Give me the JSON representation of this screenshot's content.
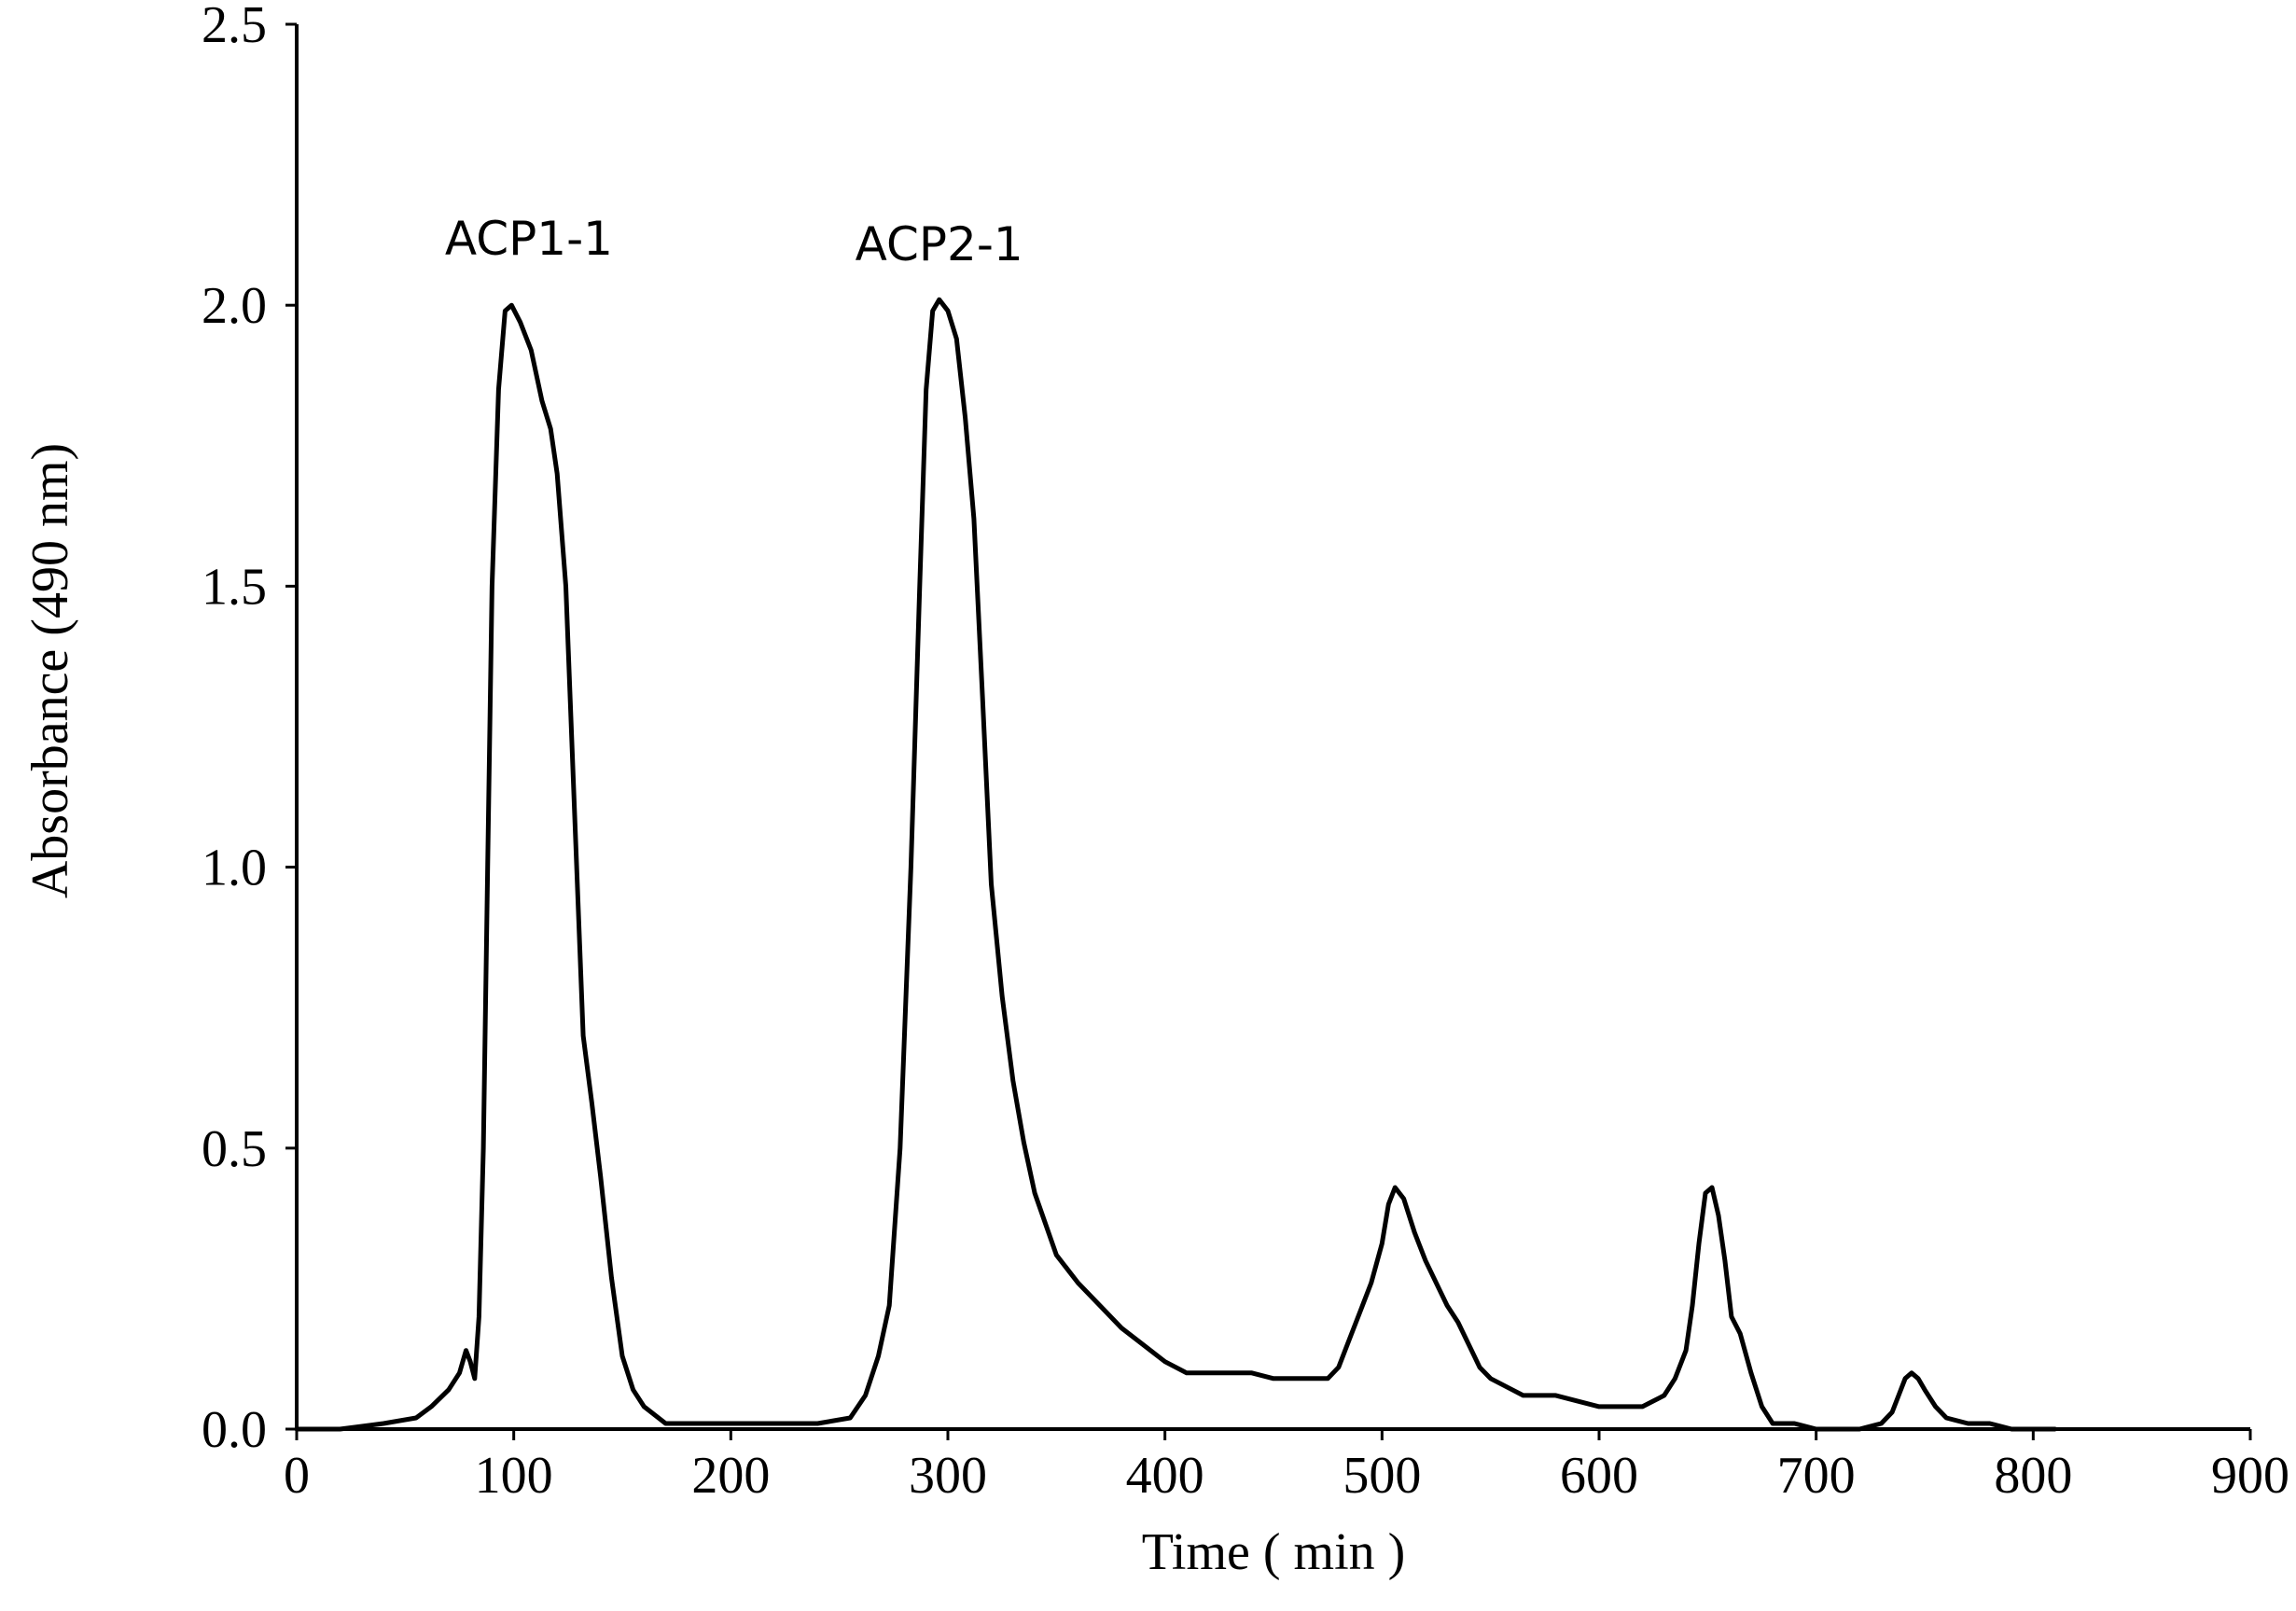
{
  "chart_data": {
    "type": "line",
    "title": "",
    "xlabel": "Time ( min )",
    "ylabel": "Absorbance (490 nm)",
    "xlim": [
      0,
      900
    ],
    "ylim": [
      0,
      2.5
    ],
    "x_ticks": [
      "0",
      "100",
      "200",
      "300",
      "400",
      "500",
      "600",
      "700",
      "800",
      "900"
    ],
    "y_ticks": [
      "0.0",
      "0.5",
      "1.0",
      "1.5",
      "2.0",
      "2.5"
    ],
    "grid": false,
    "legend": "none",
    "line_color": "#000000",
    "annotations": [
      {
        "text": "ACP1-1",
        "x": 107,
        "y": 2.12
      },
      {
        "text": "ACP2-1",
        "x": 296,
        "y": 2.11
      }
    ],
    "series": [
      {
        "x": [
          0,
          20,
          40,
          55,
          62,
          70,
          75,
          78,
          80,
          82,
          84,
          86,
          88,
          90,
          93,
          96,
          99,
          103,
          108,
          113,
          117,
          120,
          124,
          128,
          132,
          136,
          140,
          145,
          150,
          155,
          160,
          170,
          180,
          200,
          220,
          240,
          255,
          262,
          268,
          273,
          278,
          283,
          287,
          290,
          293,
          296,
          300,
          304,
          308,
          312,
          316,
          320,
          325,
          330,
          335,
          340,
          350,
          360,
          370,
          380,
          390,
          400,
          410,
          420,
          430,
          440,
          450,
          460,
          470,
          475,
          480,
          485,
          490,
          495,
          500,
          503,
          506,
          510,
          515,
          520,
          525,
          530,
          535,
          540,
          545,
          550,
          555,
          560,
          565,
          570,
          580,
          590,
          600,
          610,
          620,
          625,
          630,
          635,
          640,
          643,
          646,
          649,
          652,
          655,
          658,
          661,
          665,
          670,
          675,
          680,
          690,
          700,
          710,
          720,
          730,
          735,
          738,
          741,
          744,
          747,
          750,
          755,
          760,
          770,
          780,
          790,
          800,
          810
        ],
        "y": [
          0.0,
          0.0,
          0.01,
          0.02,
          0.04,
          0.07,
          0.1,
          0.14,
          0.12,
          0.09,
          0.2,
          0.5,
          1.0,
          1.5,
          1.85,
          1.99,
          2.0,
          1.97,
          1.92,
          1.83,
          1.78,
          1.7,
          1.5,
          1.1,
          0.7,
          0.58,
          0.45,
          0.27,
          0.13,
          0.07,
          0.04,
          0.01,
          0.01,
          0.01,
          0.01,
          0.01,
          0.02,
          0.06,
          0.13,
          0.22,
          0.5,
          1.0,
          1.5,
          1.85,
          1.99,
          2.01,
          1.99,
          1.94,
          1.8,
          1.62,
          1.3,
          0.97,
          0.77,
          0.62,
          0.51,
          0.42,
          0.31,
          0.26,
          0.22,
          0.18,
          0.15,
          0.12,
          0.1,
          0.1,
          0.1,
          0.1,
          0.09,
          0.09,
          0.09,
          0.09,
          0.11,
          0.16,
          0.21,
          0.26,
          0.33,
          0.4,
          0.43,
          0.41,
          0.35,
          0.3,
          0.26,
          0.22,
          0.19,
          0.15,
          0.11,
          0.09,
          0.08,
          0.07,
          0.06,
          0.06,
          0.06,
          0.05,
          0.04,
          0.04,
          0.04,
          0.05,
          0.06,
          0.09,
          0.14,
          0.22,
          0.33,
          0.42,
          0.43,
          0.38,
          0.3,
          0.2,
          0.17,
          0.1,
          0.04,
          0.01,
          0.01,
          0.0,
          0.0,
          0.0,
          0.01,
          0.03,
          0.06,
          0.09,
          0.1,
          0.09,
          0.07,
          0.04,
          0.02,
          0.01,
          0.01,
          0.0,
          0.0,
          0.0
        ]
      }
    ]
  }
}
